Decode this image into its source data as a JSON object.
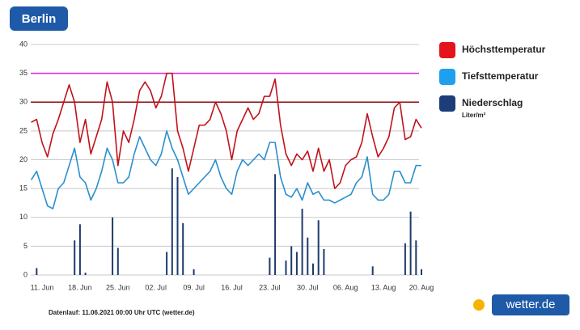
{
  "chart_data": {
    "type": "line",
    "title": "Berlin",
    "footnote": "Datenlauf: 11.06.2021 00:00 Uhr UTC (wetter.de)",
    "logo": "wetter.de",
    "categories": [
      null,
      null,
      "11. Jun",
      null,
      null,
      null,
      null,
      null,
      null,
      "18. Jun",
      null,
      null,
      null,
      null,
      null,
      null,
      "25. Jun",
      null,
      null,
      null,
      null,
      null,
      null,
      "02. Jul",
      null,
      null,
      null,
      null,
      null,
      null,
      "09. Jul",
      null,
      null,
      null,
      null,
      null,
      null,
      "16. Jul",
      null,
      null,
      null,
      null,
      null,
      null,
      "23. Jul",
      null,
      null,
      null,
      null,
      null,
      null,
      "30. Jul",
      null,
      null,
      null,
      null,
      null,
      null,
      "06. Aug",
      null,
      null,
      null,
      null,
      null,
      null,
      "13. Aug",
      null,
      null,
      null,
      null,
      null,
      null,
      "20. Aug"
    ],
    "series": [
      {
        "name": "Höchsttemperatur",
        "type": "line",
        "color": "#c0121b",
        "legend_color": "#e5141c",
        "values": [
          26.5,
          27,
          23,
          20.5,
          24.5,
          27,
          30,
          33,
          30,
          23,
          27,
          21,
          24,
          27,
          33.5,
          30,
          19,
          25,
          23,
          27,
          32,
          33.5,
          32,
          29,
          31,
          35,
          35,
          25,
          22,
          18,
          22,
          26,
          26,
          27,
          30,
          28,
          25,
          20,
          25,
          27,
          29,
          27,
          28,
          31,
          31,
          34,
          26,
          21,
          19,
          21,
          20,
          21.5,
          18,
          22,
          18,
          20,
          15,
          16,
          19,
          20,
          20.5,
          23,
          28,
          24,
          20.5,
          22,
          24,
          29,
          30,
          23.5,
          24,
          27,
          25.5
        ]
      },
      {
        "name": "Tiefsttemperatur",
        "type": "line",
        "color": "#2a8fcc",
        "legend_color": "#1ea0ee",
        "values": [
          16.5,
          18,
          15,
          12,
          11.5,
          15,
          16,
          19,
          22,
          17,
          16,
          13,
          15,
          18,
          22,
          20,
          16,
          16,
          17,
          21,
          24,
          22,
          20,
          19,
          21,
          25,
          22,
          20,
          17,
          14,
          15,
          16,
          17,
          18,
          20,
          17,
          15,
          14,
          18,
          20,
          19,
          20,
          21,
          20,
          23,
          23,
          17,
          14,
          13.5,
          15,
          13,
          16,
          14,
          14.5,
          13,
          13,
          12.5,
          13,
          13.5,
          14,
          16,
          17,
          20.5,
          14,
          13,
          13,
          14,
          18,
          18,
          16,
          16,
          19,
          19
        ]
      },
      {
        "name": "Niederschlag",
        "type": "bar",
        "unit": "Liter/m²",
        "color": "#1d3a6c",
        "legend_color": "#1c3d78",
        "values": [
          0,
          1.2,
          0,
          0,
          0,
          0,
          0,
          0,
          6,
          8.8,
          0.4,
          0,
          0,
          0,
          0,
          10,
          4.7,
          0,
          0,
          0,
          0,
          0,
          0,
          0,
          0,
          4,
          18.5,
          17,
          9,
          0,
          1,
          0,
          0,
          0,
          0,
          0,
          0,
          0,
          0,
          0,
          0,
          0,
          0,
          0,
          3,
          17.5,
          0,
          2.5,
          5,
          4,
          11.5,
          6.5,
          2,
          9.5,
          4.5,
          0,
          0,
          0,
          0,
          0,
          0,
          0,
          0,
          1.5,
          0,
          0,
          0,
          0,
          0,
          5.5,
          11,
          6,
          1
        ]
      }
    ],
    "reference_lines": [
      {
        "value": 35,
        "color": "#e020e0"
      },
      {
        "value": 30,
        "color": "#8a0a10"
      }
    ],
    "ylim": [
      0,
      40
    ],
    "yticks": [
      0,
      5,
      10,
      15,
      20,
      25,
      30,
      35,
      40
    ],
    "grid": true
  }
}
